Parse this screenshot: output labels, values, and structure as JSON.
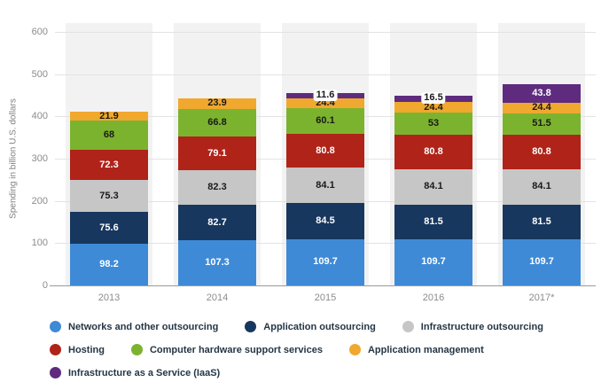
{
  "chart_data": {
    "type": "bar",
    "stacked": true,
    "title": "",
    "ylabel": "Spending in billion U.S. dollars",
    "xlabel": "",
    "ylim": [
      0,
      600
    ],
    "yticks": [
      0,
      100,
      200,
      300,
      400,
      500,
      600
    ],
    "grid": true,
    "legend_position": "bottom",
    "categories": [
      "2013",
      "2014",
      "2015",
      "2016",
      "2017*"
    ],
    "series": [
      {
        "name": "Networks and other outsourcing",
        "color": "#3f8ad6",
        "label_color": "#ffffff",
        "values": [
          98.2,
          107.3,
          109.7,
          109.7,
          109.7
        ]
      },
      {
        "name": "Application outsourcing",
        "color": "#17375e",
        "label_color": "#ffffff",
        "values": [
          75.6,
          82.7,
          84.5,
          81.5,
          81.5
        ]
      },
      {
        "name": "Infrastructure outsourcing",
        "color": "#c6c6c6",
        "label_color": "#1a1a1a",
        "values": [
          75.3,
          82.3,
          84.1,
          84.1,
          84.1
        ]
      },
      {
        "name": "Hosting",
        "color": "#b02318",
        "label_color": "#ffffff",
        "values": [
          72.3,
          79.1,
          80.8,
          80.8,
          80.8
        ]
      },
      {
        "name": "Computer hardware support services",
        "color": "#7cb32e",
        "label_color": "#1a1a1a",
        "values": [
          68,
          66.8,
          60.1,
          53,
          51.5
        ]
      },
      {
        "name": "Application management",
        "color": "#f0a82e",
        "label_color": "#1a1a1a",
        "values": [
          21.9,
          23.9,
          24.4,
          24.4,
          24.4
        ]
      },
      {
        "name": "Infrastructure as a Service (IaaS)",
        "color": "#5e2b7e",
        "label_color": "#ffffff",
        "values": [
          null,
          null,
          11.6,
          16.5,
          43.8
        ]
      }
    ]
  }
}
